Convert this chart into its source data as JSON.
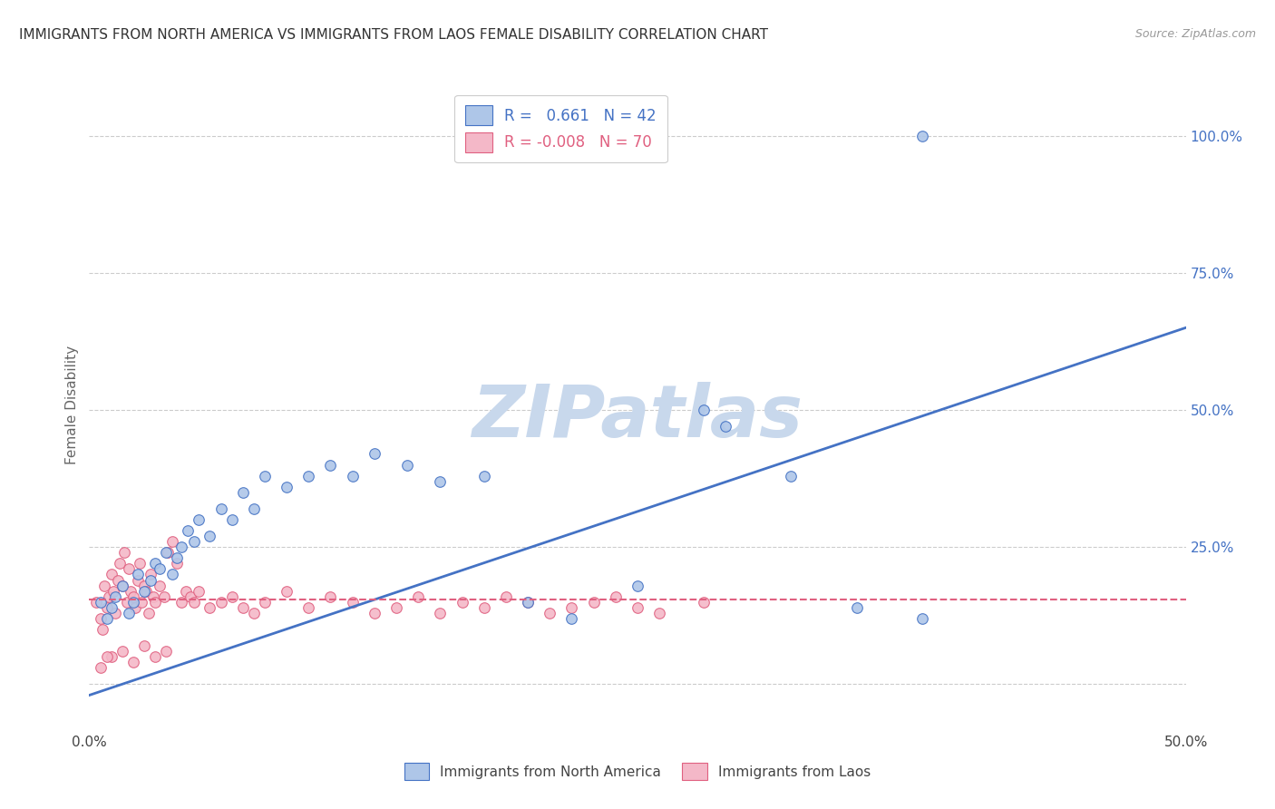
{
  "title": "IMMIGRANTS FROM NORTH AMERICA VS IMMIGRANTS FROM LAOS FEMALE DISABILITY CORRELATION CHART",
  "source": "Source: ZipAtlas.com",
  "ylabel": "Female Disability",
  "xlim": [
    0.0,
    0.5
  ],
  "ylim": [
    -0.08,
    1.1
  ],
  "yticks": [
    0.0,
    0.25,
    0.5,
    0.75,
    1.0
  ],
  "blue_scatter_x": [
    0.005,
    0.008,
    0.01,
    0.012,
    0.015,
    0.018,
    0.02,
    0.022,
    0.025,
    0.028,
    0.03,
    0.032,
    0.035,
    0.038,
    0.04,
    0.042,
    0.045,
    0.048,
    0.05,
    0.055,
    0.06,
    0.065,
    0.07,
    0.075,
    0.08,
    0.09,
    0.1,
    0.11,
    0.12,
    0.13,
    0.145,
    0.16,
    0.18,
    0.2,
    0.22,
    0.25,
    0.28,
    0.32,
    0.35,
    0.38,
    0.29,
    0.38
  ],
  "blue_scatter_y": [
    0.15,
    0.12,
    0.14,
    0.16,
    0.18,
    0.13,
    0.15,
    0.2,
    0.17,
    0.19,
    0.22,
    0.21,
    0.24,
    0.2,
    0.23,
    0.25,
    0.28,
    0.26,
    0.3,
    0.27,
    0.32,
    0.3,
    0.35,
    0.32,
    0.38,
    0.36,
    0.38,
    0.4,
    0.38,
    0.42,
    0.4,
    0.37,
    0.38,
    0.15,
    0.12,
    0.18,
    0.5,
    0.38,
    0.14,
    0.12,
    0.47,
    1.0
  ],
  "pink_scatter_x": [
    0.003,
    0.005,
    0.006,
    0.007,
    0.008,
    0.009,
    0.01,
    0.011,
    0.012,
    0.013,
    0.014,
    0.015,
    0.016,
    0.017,
    0.018,
    0.019,
    0.02,
    0.021,
    0.022,
    0.023,
    0.024,
    0.025,
    0.026,
    0.027,
    0.028,
    0.029,
    0.03,
    0.032,
    0.034,
    0.036,
    0.038,
    0.04,
    0.042,
    0.044,
    0.046,
    0.048,
    0.05,
    0.055,
    0.06,
    0.065,
    0.07,
    0.075,
    0.08,
    0.09,
    0.1,
    0.11,
    0.12,
    0.13,
    0.14,
    0.15,
    0.16,
    0.17,
    0.18,
    0.19,
    0.2,
    0.21,
    0.22,
    0.23,
    0.24,
    0.25,
    0.26,
    0.28,
    0.01,
    0.015,
    0.02,
    0.025,
    0.03,
    0.035,
    0.005,
    0.008
  ],
  "pink_scatter_y": [
    0.15,
    0.12,
    0.1,
    0.18,
    0.14,
    0.16,
    0.2,
    0.17,
    0.13,
    0.19,
    0.22,
    0.18,
    0.24,
    0.15,
    0.21,
    0.17,
    0.16,
    0.14,
    0.19,
    0.22,
    0.15,
    0.18,
    0.17,
    0.13,
    0.2,
    0.16,
    0.15,
    0.18,
    0.16,
    0.24,
    0.26,
    0.22,
    0.15,
    0.17,
    0.16,
    0.15,
    0.17,
    0.14,
    0.15,
    0.16,
    0.14,
    0.13,
    0.15,
    0.17,
    0.14,
    0.16,
    0.15,
    0.13,
    0.14,
    0.16,
    0.13,
    0.15,
    0.14,
    0.16,
    0.15,
    0.13,
    0.14,
    0.15,
    0.16,
    0.14,
    0.13,
    0.15,
    0.05,
    0.06,
    0.04,
    0.07,
    0.05,
    0.06,
    0.03,
    0.05
  ],
  "blue_line_x": [
    0.0,
    0.5
  ],
  "blue_line_y": [
    -0.02,
    0.65
  ],
  "pink_line_y": 0.155,
  "blue_color": "#aec6e8",
  "blue_line_color": "#4472c4",
  "pink_color": "#f4b8c8",
  "pink_line_color": "#e06080",
  "background_color": "#ffffff",
  "grid_color": "#cccccc",
  "watermark_color": "#c8d8ec"
}
